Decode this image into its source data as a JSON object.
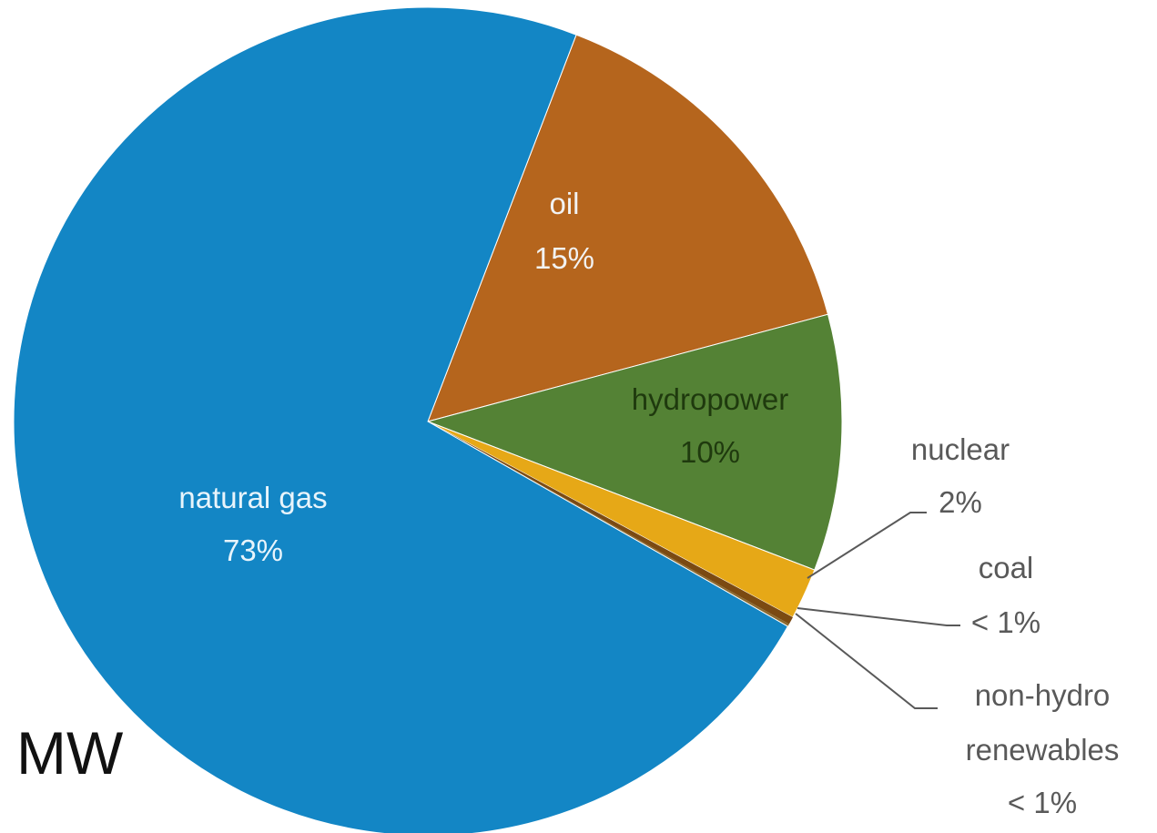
{
  "chart_data": {
    "type": "pie",
    "unit_label": "MW",
    "slices": [
      {
        "name": "oil",
        "label": "oil",
        "pct_label": "15%",
        "value": 15,
        "color": "#B5651D",
        "text_color": "#F2F2F2"
      },
      {
        "name": "hydropower",
        "label": "hydropower",
        "pct_label": "10%",
        "value": 10,
        "color": "#548235",
        "text_color": "#1F3A0E"
      },
      {
        "name": "nuclear",
        "label": "nuclear",
        "pct_label": "2%",
        "value": 2,
        "color": "#E6A817",
        "text_color": "#595959"
      },
      {
        "name": "coal",
        "label": "coal",
        "pct_label": "< 1%",
        "value": 0.3,
        "color": "#7B4A12",
        "text_color": "#595959"
      },
      {
        "name": "non-hydro renewables",
        "label": "non-hydro renewables",
        "label_lines": [
          "non-hydro",
          "renewables"
        ],
        "pct_label": "< 1%",
        "value": 0.1,
        "color": "#8B6A2F",
        "text_color": "#595959"
      },
      {
        "name": "natural gas",
        "label": "natural gas",
        "pct_label": "73%",
        "value": 72.6,
        "color": "#1386C5",
        "text_color": "#E8F4FB"
      }
    ],
    "start_angle_deg": 21,
    "direction": "clockwise"
  }
}
